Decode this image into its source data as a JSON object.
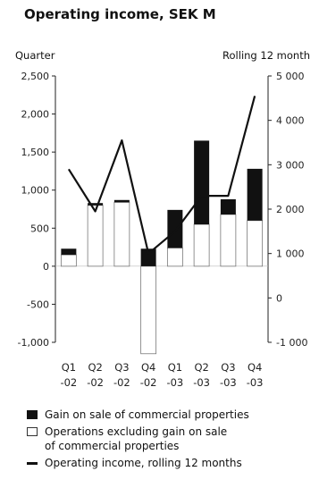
{
  "title": "Operating income, SEK M",
  "colors": {
    "gain": "#111111",
    "operations": "#ffffff",
    "line": "#111111"
  },
  "chart_data": {
    "type": "bar",
    "title": "Operating income, SEK M",
    "ylabel_left": "Quarter",
    "ylabel_right": "Rolling 12 month",
    "ylim_left": [
      -1000,
      2500
    ],
    "ylim_right": [
      -1000,
      5000
    ],
    "yticks_left": [
      "2,500",
      "2,000",
      "1,500",
      "1,000",
      "500",
      "0",
      "-500",
      "-1,000"
    ],
    "yticks_right": [
      "5 000",
      "4 000",
      "3 000",
      "2 000",
      "1 000",
      "0",
      "-1 000"
    ],
    "categories": [
      {
        "q": "Q1",
        "y": "-02"
      },
      {
        "q": "Q2",
        "y": "-02"
      },
      {
        "q": "Q3",
        "y": "-02"
      },
      {
        "q": "Q4",
        "y": "-02"
      },
      {
        "q": "Q1",
        "y": "-03"
      },
      {
        "q": "Q2",
        "y": "-03"
      },
      {
        "q": "Q3",
        "y": "-03"
      },
      {
        "q": "Q4",
        "y": "-03"
      }
    ],
    "series": [
      {
        "name": "Gain on sale of commercial properties",
        "values": [
          80,
          30,
          30,
          230,
          500,
          1100,
          200,
          680
        ]
      },
      {
        "name": "Operations excluding gain on sale of commercial properties",
        "values": [
          150,
          800,
          840,
          -1150,
          240,
          550,
          680,
          600
        ]
      },
      {
        "name": "Operating income, rolling 12 months",
        "values": [
          2900,
          1950,
          3550,
          1000,
          1500,
          2300,
          2300,
          4550
        ]
      }
    ]
  },
  "legend": {
    "gain": "Gain on sale of commercial properties",
    "operations_line1": "Operations excluding gain on sale",
    "operations_line2": "of commercial properties",
    "rolling": "Operating income, rolling 12 months"
  }
}
